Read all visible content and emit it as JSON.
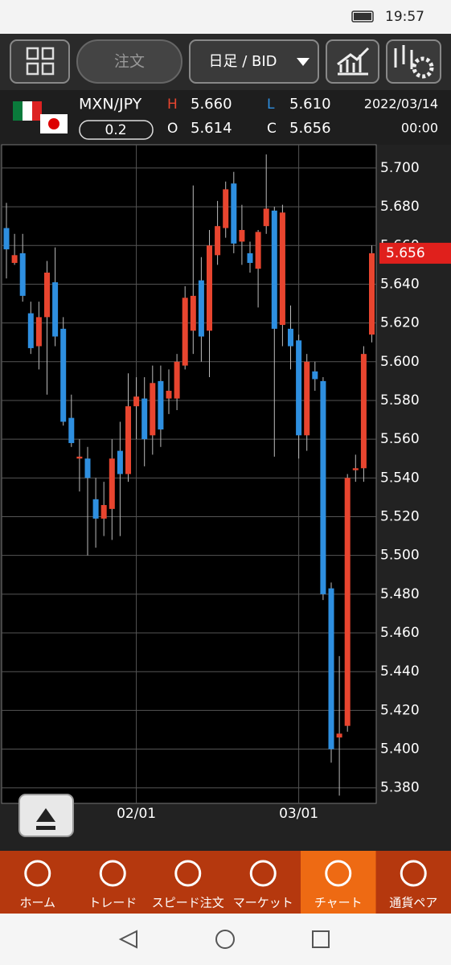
{
  "status_bar": {
    "time": "19:57"
  },
  "toolbar": {
    "order_button": "注文",
    "period_selector": "日足 / BID"
  },
  "quote": {
    "pair": "MXN/JPY",
    "spread": "0.2",
    "high_label": "H",
    "high": "5.660",
    "low_label": "L",
    "low": "5.610",
    "open_label": "O",
    "open": "5.614",
    "close_label": "C",
    "close": "5.656",
    "date": "2022/03/14",
    "time": "00:00"
  },
  "chart_data": {
    "type": "candlestick",
    "categories": [
      null,
      null,
      null,
      null,
      null,
      null,
      null,
      null,
      null,
      null,
      null,
      null,
      null,
      null,
      null,
      null,
      "02/01",
      null,
      null,
      null,
      null,
      null,
      null,
      null,
      null,
      null,
      null,
      null,
      null,
      null,
      null,
      null,
      null,
      null,
      null,
      null,
      "03/01",
      null,
      null,
      null,
      null,
      null,
      null,
      null,
      null,
      null
    ],
    "open": [
      5.669,
      5.651,
      5.656,
      5.625,
      5.608,
      5.623,
      5.641,
      5.617,
      5.571,
      5.55,
      5.55,
      5.529,
      5.519,
      5.524,
      5.554,
      5.542,
      5.577,
      5.581,
      5.562,
      5.59,
      5.581,
      5.581,
      5.598,
      5.616,
      5.642,
      5.616,
      5.655,
      5.669,
      5.692,
      5.662,
      5.656,
      5.648,
      5.67,
      5.678,
      5.619,
      5.617,
      5.611,
      5.562,
      5.595,
      5.59,
      5.483,
      5.406,
      5.412,
      5.544,
      5.545,
      5.614
    ],
    "high": [
      5.682,
      5.666,
      5.666,
      5.631,
      5.631,
      5.652,
      5.659,
      5.623,
      5.583,
      5.56,
      5.556,
      5.54,
      5.538,
      5.56,
      5.569,
      5.594,
      5.592,
      5.592,
      5.598,
      5.598,
      5.596,
      5.604,
      5.639,
      5.691,
      5.654,
      5.668,
      5.683,
      5.693,
      5.698,
      5.681,
      5.662,
      5.668,
      5.707,
      5.68,
      5.681,
      5.629,
      5.614,
      5.604,
      5.6,
      5.592,
      5.486,
      5.448,
      5.542,
      5.552,
      5.608,
      5.66
    ],
    "low": [
      5.643,
      5.65,
      5.631,
      5.604,
      5.596,
      5.583,
      5.608,
      5.567,
      5.556,
      5.533,
      5.5,
      5.504,
      5.51,
      5.508,
      5.51,
      5.538,
      5.56,
      5.546,
      5.552,
      5.556,
      5.573,
      5.575,
      5.596,
      5.604,
      5.6,
      5.592,
      5.65,
      5.664,
      5.656,
      5.65,
      5.646,
      5.628,
      5.666,
      5.551,
      5.608,
      5.596,
      5.55,
      5.554,
      5.585,
      5.477,
      5.393,
      5.376,
      5.409,
      5.538,
      5.538,
      5.61
    ],
    "close": [
      5.658,
      5.655,
      5.634,
      5.607,
      5.623,
      5.646,
      5.613,
      5.569,
      5.558,
      5.551,
      5.54,
      5.519,
      5.526,
      5.55,
      5.542,
      5.577,
      5.582,
      5.56,
      5.589,
      5.565,
      5.585,
      5.6,
      5.633,
      5.634,
      5.613,
      5.66,
      5.67,
      5.689,
      5.661,
      5.668,
      5.651,
      5.667,
      5.679,
      5.617,
      5.677,
      5.608,
      5.562,
      5.6,
      5.591,
      5.48,
      5.4,
      5.408,
      5.54,
      5.545,
      5.604,
      5.656
    ],
    "up_color": "#e8452f",
    "down_color": "#2e8fe0",
    "ylim": [
      5.372,
      5.712
    ],
    "yticks": [
      {
        "value": 5.38,
        "label": "5.380"
      },
      {
        "value": 5.4,
        "label": "5.400"
      },
      {
        "value": 5.42,
        "label": "5.420"
      },
      {
        "value": 5.44,
        "label": "5.440"
      },
      {
        "value": 5.46,
        "label": "5.460"
      },
      {
        "value": 5.48,
        "label": "5.480"
      },
      {
        "value": 5.5,
        "label": "5.500"
      },
      {
        "value": 5.52,
        "label": "5.520"
      },
      {
        "value": 5.54,
        "label": "5.540"
      },
      {
        "value": 5.56,
        "label": "5.560"
      },
      {
        "value": 5.58,
        "label": "5.580"
      },
      {
        "value": 5.6,
        "label": "5.600"
      },
      {
        "value": 5.62,
        "label": "5.620"
      },
      {
        "value": 5.64,
        "label": "5.640"
      },
      {
        "value": 5.66,
        "label": "5.660"
      },
      {
        "value": 5.68,
        "label": "5.680"
      },
      {
        "value": 5.7,
        "label": "5.700"
      }
    ],
    "grid": true
  },
  "nav": {
    "tabs": [
      "ホーム",
      "トレード",
      "スピード注文",
      "マーケット",
      "チャート",
      "通貨ペア"
    ],
    "active": 4
  }
}
